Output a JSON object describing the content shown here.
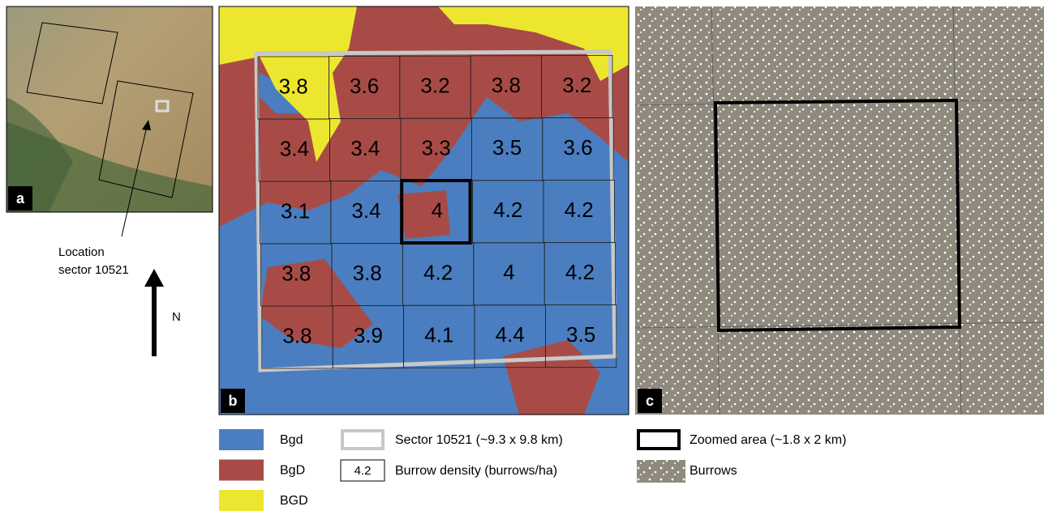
{
  "panels": [
    {
      "label": "a"
    },
    {
      "label": "b"
    },
    {
      "label": "c"
    }
  ],
  "location_note": {
    "lines": [
      "Location",
      "sector 10521"
    ]
  },
  "north": "N",
  "density_grid": {
    "rows": [
      [
        3.8,
        3.6,
        3.2,
        3.8,
        3.2
      ],
      [
        3.4,
        3.4,
        3.3,
        3.5,
        3.6
      ],
      [
        3.1,
        3.4,
        4,
        4.2,
        4.2
      ],
      [
        3.8,
        3.8,
        4.2,
        4,
        4.2
      ],
      [
        3.8,
        3.9,
        4.1,
        4.4,
        3.5
      ]
    ]
  },
  "legend": {
    "classes": [
      {
        "label": "Bgd",
        "color": "#4a7ec0"
      },
      {
        "label": "BgD",
        "color": "#a84b47"
      },
      {
        "label": "BGD",
        "color": "#ede62e"
      }
    ],
    "sector": "Sector 10521 (~9.3 x 9.8 km)",
    "density": {
      "sample": "4.2",
      "label": "Burrow density (burrows/ha)"
    },
    "zoom": "Zoomed area (~1.8 x 2 km)",
    "burrows": "Burrows"
  }
}
